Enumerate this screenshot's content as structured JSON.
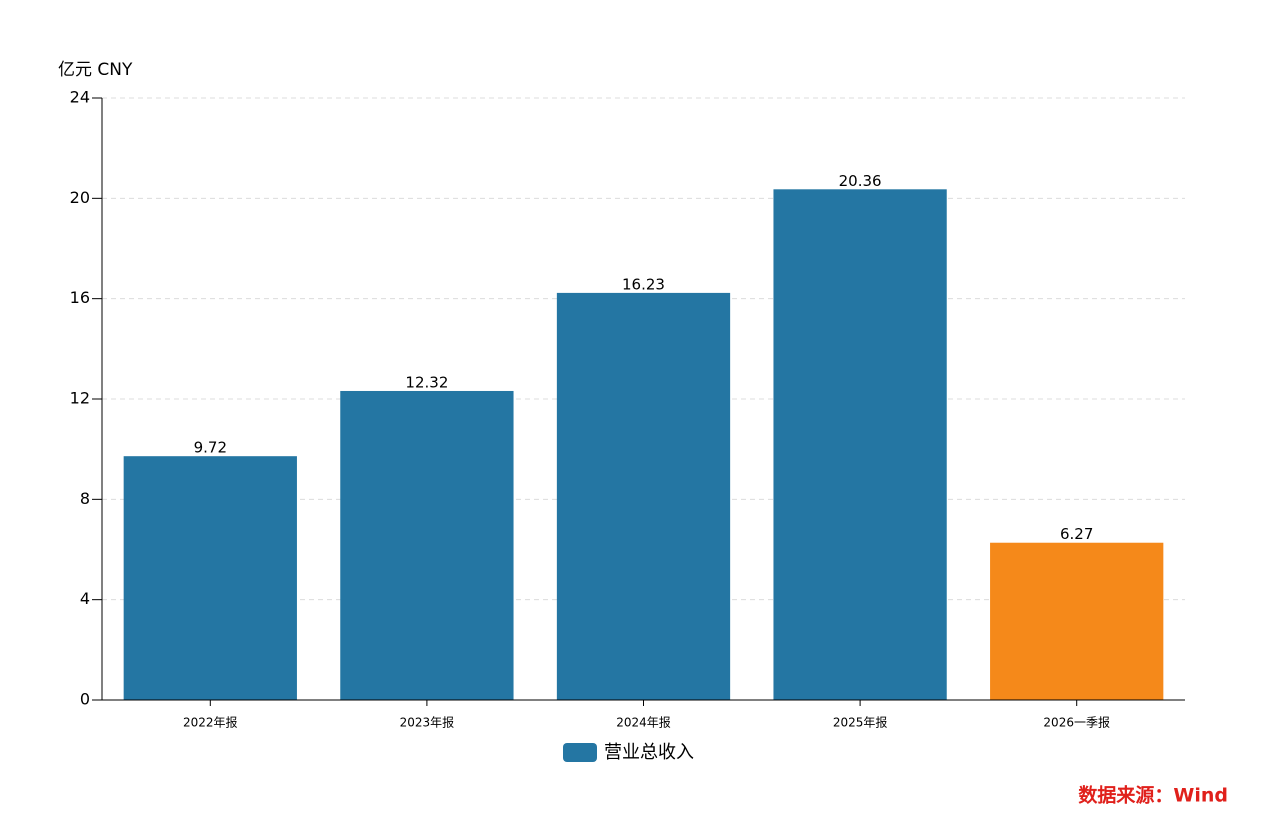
{
  "chart_data": {
    "type": "bar",
    "unit_label": "亿元  CNY",
    "categories": [
      "2022年报",
      "2023年报",
      "2024年报",
      "2025年报",
      "2026一季报"
    ],
    "series": [
      {
        "name": "营业总收入",
        "color": "#2476a3",
        "values": [
          9.72,
          12.32,
          16.23,
          20.36,
          6.27
        ]
      }
    ],
    "bar_colors": [
      "#2476a3",
      "#2476a3",
      "#2476a3",
      "#2476a3",
      "#f5891a"
    ],
    "ylim": [
      0,
      24
    ],
    "yticks": [
      0,
      4,
      8,
      12,
      16,
      20,
      24
    ],
    "grid": true,
    "source": "数据来源：Wind"
  }
}
